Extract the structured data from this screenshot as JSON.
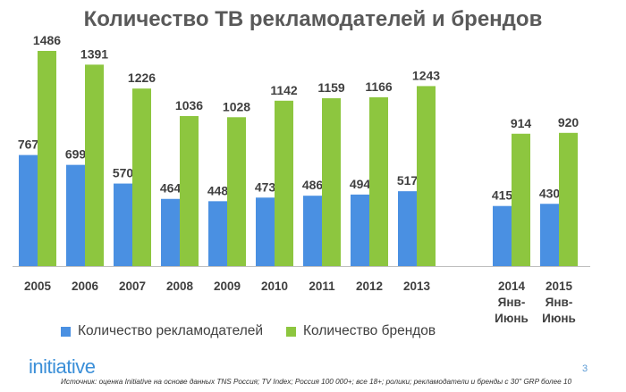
{
  "chart_data": {
    "type": "bar",
    "title": "Количество ТВ рекламодателей и брендов",
    "categories": [
      [
        "2005"
      ],
      [
        "2006"
      ],
      [
        "2007"
      ],
      [
        "2008"
      ],
      [
        "2009"
      ],
      [
        "2010"
      ],
      [
        "2011"
      ],
      [
        "2012"
      ],
      [
        "2013"
      ],
      [
        "2014",
        "Янв-",
        "Июнь"
      ],
      [
        "2015",
        "Янв-",
        "Июнь"
      ]
    ],
    "series": [
      {
        "name": "Количество рекламодателей",
        "color": "#4a90e2",
        "values": [
          767,
          699,
          570,
          464,
          448,
          473,
          486,
          494,
          517,
          415,
          430
        ]
      },
      {
        "name": "Количество брендов",
        "color": "#8dc63f",
        "values": [
          1486,
          1391,
          1226,
          1036,
          1028,
          1142,
          1159,
          1166,
          1243,
          914,
          920
        ]
      }
    ],
    "ylim": [
      0,
      1486
    ],
    "xlabel": "",
    "ylabel": ""
  },
  "footer": {
    "logo": "initiative",
    "page_number": "3",
    "source": "Источник: оценка Initiative на основе данных TNS Россия; TV Index; Россия 100 000+; все 18+; ролики; рекламодатели и бренды с 30'' GRP более 10"
  }
}
